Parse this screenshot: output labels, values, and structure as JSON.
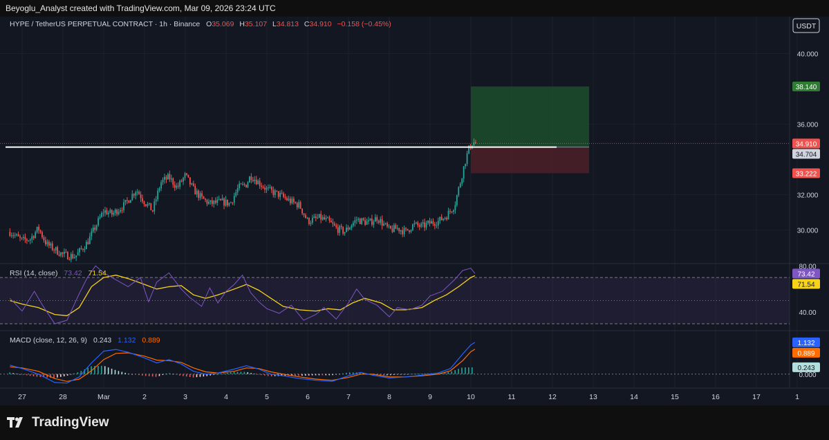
{
  "header": {
    "attribution": "Beyoglu_Analyst created with TradingView.com, Mar 09, 2026 23:24 UTC"
  },
  "legend": {
    "symbol": "HYPE / TetherUS PERPETUAL CONTRACT · 1h · Binance",
    "o_label": "O",
    "o_value": "35.069",
    "h_label": "H",
    "h_value": "35.107",
    "l_label": "L",
    "l_value": "34.813",
    "c_label": "C",
    "c_value": "34.910",
    "change": "−0.158 (−0.45%)"
  },
  "currency_button": "USDT",
  "colors": {
    "background": "#131722",
    "up": "#26a69a",
    "down": "#ef5350",
    "rsi": "#7e57c2",
    "rsi_ma": "#f7d31a",
    "macd": "#2962ff",
    "signal": "#ff6d00",
    "target_zone": "#1d4a2c",
    "stop_zone": "#4a1f28"
  },
  "chart_data": [
    {
      "type": "candlestick",
      "title": "HYPE / TetherUS PERPETUAL CONTRACT · 1h · Binance",
      "y_ticks": [
        "40.000",
        "36.000",
        "32.000",
        "30.000"
      ],
      "y_tick_values": [
        40,
        36,
        32,
        30
      ],
      "ylim": [
        28.1,
        42.1
      ],
      "x_ticks": [
        "27",
        "28",
        "Mar",
        "2",
        "3",
        "4",
        "5",
        "6",
        "7",
        "8",
        "9",
        "10",
        "11",
        "12",
        "13",
        "14",
        "15",
        "16",
        "17",
        "1"
      ],
      "x_tick_days": [
        -2,
        -1,
        0,
        1,
        2,
        3,
        4,
        5,
        6,
        7,
        8,
        9,
        10,
        11,
        12,
        13,
        14,
        15,
        16,
        17
      ],
      "close_path": [
        [
          -2.3,
          29.9
        ],
        [
          -2.0,
          29.4
        ],
        [
          -1.8,
          29.5
        ],
        [
          -1.6,
          30.1
        ],
        [
          -1.4,
          29.2
        ],
        [
          -1.0,
          28.6
        ],
        [
          -0.7,
          28.5
        ],
        [
          -0.4,
          29.3
        ],
        [
          -0.2,
          30.2
        ],
        [
          0.0,
          31.1
        ],
        [
          0.2,
          30.9
        ],
        [
          0.5,
          31.4
        ],
        [
          0.8,
          32.3
        ],
        [
          1.0,
          31.6
        ],
        [
          1.2,
          31.1
        ],
        [
          1.4,
          32.7
        ],
        [
          1.6,
          33.0
        ],
        [
          1.8,
          32.4
        ],
        [
          2.0,
          33.1
        ],
        [
          2.2,
          32.3
        ],
        [
          2.4,
          31.8
        ],
        [
          2.6,
          31.5
        ],
        [
          2.9,
          31.6
        ],
        [
          3.1,
          31.5
        ],
        [
          3.3,
          32.4
        ],
        [
          3.5,
          32.6
        ],
        [
          3.6,
          33.1
        ],
        [
          3.8,
          32.7
        ],
        [
          4.0,
          32.3
        ],
        [
          4.3,
          32.0
        ],
        [
          4.6,
          31.6
        ],
        [
          4.8,
          31.4
        ],
        [
          5.0,
          30.5
        ],
        [
          5.3,
          30.7
        ],
        [
          5.5,
          30.5
        ],
        [
          5.7,
          30.1
        ],
        [
          5.9,
          29.9
        ],
        [
          6.2,
          30.6
        ],
        [
          6.5,
          30.4
        ],
        [
          6.7,
          30.7
        ],
        [
          7.0,
          30.0
        ],
        [
          7.2,
          30.1
        ],
        [
          7.4,
          29.9
        ],
        [
          7.6,
          30.3
        ],
        [
          7.8,
          30.2
        ],
        [
          8.0,
          30.4
        ],
        [
          8.2,
          30.5
        ],
        [
          8.4,
          30.8
        ],
        [
          8.6,
          31.4
        ],
        [
          8.75,
          32.8
        ],
        [
          8.85,
          33.8
        ],
        [
          8.95,
          34.6
        ],
        [
          9.05,
          35.0
        ],
        [
          9.15,
          34.9
        ]
      ],
      "horizontal_level": 34.704,
      "position_tool": {
        "entry": 34.704,
        "target": 38.14,
        "stop": 33.222,
        "start_day": 9.0,
        "end_day": 11.9
      },
      "price_labels": [
        {
          "text": "38.140",
          "value": 38.14,
          "kind": "target"
        },
        {
          "text": "34.910",
          "value": 34.91,
          "kind": "last"
        },
        {
          "text": "34.704",
          "value": 34.704,
          "kind": "level"
        },
        {
          "text": "33.222",
          "value": 33.222,
          "kind": "stop"
        }
      ]
    },
    {
      "type": "line",
      "title": "RSI (14, close)",
      "legend_values": [
        "73.42",
        "71.54"
      ],
      "y_ticks": [
        "80.00",
        "40.00"
      ],
      "y_tick_values": [
        80,
        40
      ],
      "ylim": [
        24,
        82
      ],
      "bands": [
        70,
        50,
        30
      ],
      "series": [
        {
          "name": "RSI",
          "points": [
            [
              -2.3,
              52
            ],
            [
              -2.0,
              41
            ],
            [
              -1.7,
              58
            ],
            [
              -1.5,
              46
            ],
            [
              -1.2,
              30
            ],
            [
              -0.9,
              33
            ],
            [
              -0.6,
              56
            ],
            [
              -0.4,
              70
            ],
            [
              -0.2,
              80
            ],
            [
              0.0,
              74
            ],
            [
              0.3,
              68
            ],
            [
              0.6,
              62
            ],
            [
              0.9,
              70
            ],
            [
              1.1,
              49
            ],
            [
              1.3,
              66
            ],
            [
              1.6,
              74
            ],
            [
              1.9,
              60
            ],
            [
              2.1,
              53
            ],
            [
              2.4,
              45
            ],
            [
              2.6,
              61
            ],
            [
              2.8,
              48
            ],
            [
              3.0,
              58
            ],
            [
              3.2,
              64
            ],
            [
              3.4,
              72
            ],
            [
              3.6,
              57
            ],
            [
              3.8,
              49
            ],
            [
              4.0,
              43
            ],
            [
              4.3,
              39
            ],
            [
              4.6,
              46
            ],
            [
              4.9,
              33
            ],
            [
              5.2,
              38
            ],
            [
              5.4,
              44
            ],
            [
              5.7,
              34
            ],
            [
              6.0,
              48
            ],
            [
              6.2,
              60
            ],
            [
              6.4,
              51
            ],
            [
              6.7,
              46
            ],
            [
              7.0,
              36
            ],
            [
              7.2,
              44
            ],
            [
              7.5,
              42
            ],
            [
              7.8,
              46
            ],
            [
              8.0,
              54
            ],
            [
              8.3,
              58
            ],
            [
              8.6,
              68
            ],
            [
              8.8,
              76
            ],
            [
              9.0,
              78
            ],
            [
              9.1,
              73.42
            ]
          ]
        },
        {
          "name": "RSI-based MA",
          "points": [
            [
              -2.3,
              50
            ],
            [
              -2.0,
              47
            ],
            [
              -1.6,
              44
            ],
            [
              -1.2,
              38
            ],
            [
              -0.9,
              37
            ],
            [
              -0.6,
              44
            ],
            [
              -0.3,
              62
            ],
            [
              0.0,
              70
            ],
            [
              0.3,
              72
            ],
            [
              0.6,
              69
            ],
            [
              1.0,
              64
            ],
            [
              1.3,
              60
            ],
            [
              1.6,
              62
            ],
            [
              1.9,
              63
            ],
            [
              2.2,
              55
            ],
            [
              2.5,
              52
            ],
            [
              2.8,
              55
            ],
            [
              3.2,
              60
            ],
            [
              3.5,
              64
            ],
            [
              3.8,
              59
            ],
            [
              4.1,
              52
            ],
            [
              4.4,
              45
            ],
            [
              4.8,
              42
            ],
            [
              5.2,
              41
            ],
            [
              5.5,
              43
            ],
            [
              5.8,
              42
            ],
            [
              6.1,
              48
            ],
            [
              6.4,
              52
            ],
            [
              6.8,
              48
            ],
            [
              7.1,
              42
            ],
            [
              7.4,
              42
            ],
            [
              7.8,
              44
            ],
            [
              8.1,
              50
            ],
            [
              8.4,
              55
            ],
            [
              8.7,
              62
            ],
            [
              9.0,
              70
            ],
            [
              9.1,
              71.54
            ]
          ]
        }
      ],
      "value_labels": [
        {
          "text": "73.42",
          "value": 73.42,
          "kind": "rsi"
        },
        {
          "text": "71.54",
          "value": 71.54,
          "kind": "ma"
        }
      ]
    },
    {
      "type": "line",
      "title": "MACD (close, 12, 26, 9)",
      "legend_values": [
        "0.243",
        "1.132",
        "0.889"
      ],
      "y_ticks": [
        "0.000"
      ],
      "y_tick_values": [
        0.0
      ],
      "ylim": [
        -0.5,
        1.55
      ],
      "series": [
        {
          "name": "MACD",
          "points": [
            [
              -2.3,
              0.32
            ],
            [
              -2.0,
              0.2
            ],
            [
              -1.6,
              0.0
            ],
            [
              -1.2,
              -0.3
            ],
            [
              -0.9,
              -0.32
            ],
            [
              -0.6,
              -0.1
            ],
            [
              -0.3,
              0.4
            ],
            [
              0.0,
              0.82
            ],
            [
              0.3,
              0.88
            ],
            [
              0.6,
              0.78
            ],
            [
              1.0,
              0.58
            ],
            [
              1.3,
              0.4
            ],
            [
              1.6,
              0.52
            ],
            [
              1.9,
              0.36
            ],
            [
              2.2,
              0.1
            ],
            [
              2.5,
              0.0
            ],
            [
              2.8,
              0.04
            ],
            [
              3.2,
              0.18
            ],
            [
              3.5,
              0.3
            ],
            [
              3.8,
              0.18
            ],
            [
              4.1,
              0.0
            ],
            [
              4.4,
              -0.06
            ],
            [
              4.8,
              -0.16
            ],
            [
              5.2,
              -0.22
            ],
            [
              5.6,
              -0.26
            ],
            [
              6.0,
              -0.06
            ],
            [
              6.3,
              0.06
            ],
            [
              6.6,
              -0.04
            ],
            [
              7.0,
              -0.14
            ],
            [
              7.4,
              -0.1
            ],
            [
              7.8,
              -0.04
            ],
            [
              8.2,
              0.04
            ],
            [
              8.5,
              0.2
            ],
            [
              8.8,
              0.72
            ],
            [
              9.0,
              1.04
            ],
            [
              9.1,
              1.132
            ]
          ]
        },
        {
          "name": "Signal",
          "points": [
            [
              -2.3,
              0.26
            ],
            [
              -2.0,
              0.22
            ],
            [
              -1.6,
              0.1
            ],
            [
              -1.2,
              -0.16
            ],
            [
              -0.9,
              -0.26
            ],
            [
              -0.6,
              -0.18
            ],
            [
              -0.3,
              0.12
            ],
            [
              0.0,
              0.52
            ],
            [
              0.3,
              0.74
            ],
            [
              0.6,
              0.76
            ],
            [
              1.0,
              0.64
            ],
            [
              1.3,
              0.5
            ],
            [
              1.6,
              0.48
            ],
            [
              1.9,
              0.42
            ],
            [
              2.2,
              0.22
            ],
            [
              2.5,
              0.08
            ],
            [
              2.8,
              0.04
            ],
            [
              3.2,
              0.1
            ],
            [
              3.5,
              0.22
            ],
            [
              3.8,
              0.2
            ],
            [
              4.1,
              0.08
            ],
            [
              4.4,
              0.0
            ],
            [
              4.8,
              -0.1
            ],
            [
              5.2,
              -0.18
            ],
            [
              5.6,
              -0.22
            ],
            [
              6.0,
              -0.12
            ],
            [
              6.3,
              0.0
            ],
            [
              6.6,
              0.0
            ],
            [
              7.0,
              -0.1
            ],
            [
              7.4,
              -0.1
            ],
            [
              7.8,
              -0.06
            ],
            [
              8.2,
              0.0
            ],
            [
              8.5,
              0.12
            ],
            [
              8.8,
              0.48
            ],
            [
              9.0,
              0.8
            ],
            [
              9.1,
              0.889
            ]
          ]
        }
      ],
      "histogram_last": 0.243,
      "value_labels": [
        {
          "text": "1.132",
          "value": 1.132,
          "kind": "macd"
        },
        {
          "text": "0.889",
          "value": 0.889,
          "kind": "signal"
        },
        {
          "text": "0.243",
          "value": 0.243,
          "kind": "hist"
        }
      ]
    }
  ],
  "footer": {
    "brand": "TradingView"
  }
}
